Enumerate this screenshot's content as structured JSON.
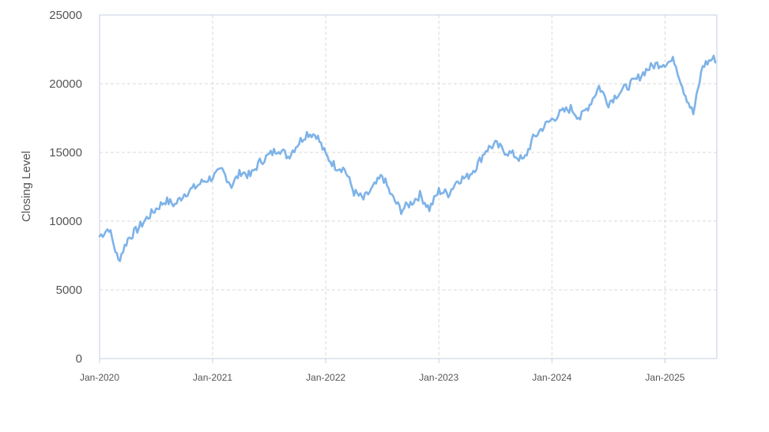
{
  "chart_data": {
    "type": "line",
    "title": "",
    "xlabel": "",
    "ylabel": "Closing Level",
    "x_tick_labels": [
      "Jan-2020",
      "Jan-2021",
      "Jan-2022",
      "Jan-2023",
      "Jan-2024",
      "Jan-2025"
    ],
    "y_tick_labels": [
      "0",
      "5000",
      "10000",
      "15000",
      "20000",
      "25000"
    ],
    "ylim": [
      0,
      25000
    ],
    "xlim": [
      "2020-01",
      "2025-06"
    ],
    "grid": true,
    "legend": "none",
    "colors": {
      "line": "#7eb3e8",
      "grid": "#d9d9d9",
      "axis": "#c7cfe3"
    },
    "series": [
      {
        "x": [
          "2020-01",
          "2020-02",
          "2020-03",
          "2020-04",
          "2020-05",
          "2020-06",
          "2020-07",
          "2020-08",
          "2020-09",
          "2020-10",
          "2020-11",
          "2020-12",
          "2021-01",
          "2021-02",
          "2021-03",
          "2021-04",
          "2021-05",
          "2021-06",
          "2021-07",
          "2021-08",
          "2021-09",
          "2021-10",
          "2021-11",
          "2021-12",
          "2022-01",
          "2022-02",
          "2022-03",
          "2022-04",
          "2022-05",
          "2022-06",
          "2022-07",
          "2022-08",
          "2022-09",
          "2022-10",
          "2022-11",
          "2022-12",
          "2023-01",
          "2023-02",
          "2023-03",
          "2023-04",
          "2023-05",
          "2023-06",
          "2023-07",
          "2023-08",
          "2023-09",
          "2023-10",
          "2023-11",
          "2023-12",
          "2024-01",
          "2024-02",
          "2024-03",
          "2024-04",
          "2024-05",
          "2024-06",
          "2024-07",
          "2024-08",
          "2024-09",
          "2024-10",
          "2024-11",
          "2024-12",
          "2025-01",
          "2025-02",
          "2025-03",
          "2025-04",
          "2025-05",
          "2025-06"
        ],
        "values": [
          8900,
          9500,
          7100,
          8700,
          9400,
          10200,
          10900,
          11500,
          11200,
          12000,
          12400,
          12900,
          13200,
          13700,
          12600,
          13600,
          13300,
          14300,
          14800,
          15300,
          14700,
          15600,
          16400,
          16300,
          14800,
          14000,
          13800,
          12100,
          11600,
          12400,
          13300,
          11800,
          10800,
          11300,
          11900,
          10900,
          12200,
          12000,
          13000,
          13200,
          14000,
          15200,
          15600,
          15100,
          14800,
          14400,
          16000,
          16800,
          17400,
          17900,
          18200,
          17500,
          18500,
          19800,
          18600,
          19300,
          19800,
          20300,
          21000,
          21400,
          21500,
          21700,
          19500,
          17800,
          21300,
          21800
        ]
      }
    ]
  }
}
